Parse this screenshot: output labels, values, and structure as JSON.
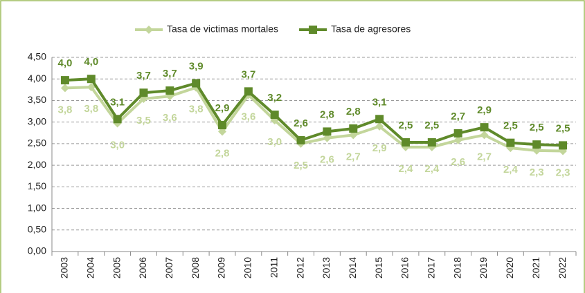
{
  "chart_data": {
    "type": "line",
    "categories": [
      "2003",
      "2004",
      "2005",
      "2006",
      "2007",
      "2008",
      "2009",
      "2010",
      "2011",
      "2012",
      "2013",
      "2014",
      "2015",
      "2016",
      "2017",
      "2018",
      "2019",
      "2020",
      "2021",
      "2022"
    ],
    "series": [
      {
        "name": "Tasa de victimas mortales",
        "color": "#c3d69b",
        "values": [
          3.79,
          3.81,
          2.97,
          3.54,
          3.6,
          3.8,
          2.78,
          3.63,
          3.04,
          2.5,
          2.63,
          2.7,
          2.9,
          2.42,
          2.42,
          2.58,
          2.7,
          2.4,
          2.34,
          2.33
        ],
        "value_labels": [
          "3,8",
          "3,8",
          "3,0",
          "3,5",
          "3,6",
          "3,8",
          "2,8",
          "3,6",
          "3,0",
          "2,5",
          "2,6",
          "2,7",
          "2,9",
          "2,4",
          "2,4",
          "2,6",
          "2,7",
          "2,4",
          "2,3",
          "2,3"
        ]
      },
      {
        "name": "Tasa de agresores",
        "color": "#5f8a2a",
        "values": [
          3.97,
          4.0,
          3.07,
          3.68,
          3.73,
          3.9,
          2.93,
          3.71,
          3.17,
          2.58,
          2.78,
          2.85,
          3.07,
          2.53,
          2.53,
          2.74,
          2.88,
          2.52,
          2.48,
          2.46
        ],
        "value_labels": [
          "4,0",
          "4,0",
          "3,1",
          "3,7",
          "3,7",
          "3,9",
          "2,9",
          "3,7",
          "3,2",
          "2,6",
          "2,8",
          "2,8",
          "3,1",
          "2,5",
          "2,5",
          "2,7",
          "2,9",
          "2,5",
          "2,5",
          "2,5"
        ]
      }
    ],
    "ylim": [
      0,
      4.5
    ],
    "yticks": [
      {
        "value": 0,
        "label": "0,00"
      },
      {
        "value": 0.5,
        "label": "0,50"
      },
      {
        "value": 1,
        "label": "1,00"
      },
      {
        "value": 1.5,
        "label": "1,50"
      },
      {
        "value": 2,
        "label": "2,00"
      },
      {
        "value": 2.5,
        "label": "2,50"
      },
      {
        "value": 3,
        "label": "3,00"
      },
      {
        "value": 3.5,
        "label": "3,50"
      },
      {
        "value": 4,
        "label": "4,00"
      },
      {
        "value": 4.5,
        "label": "4,50"
      }
    ],
    "grid": true,
    "legend": "top"
  }
}
